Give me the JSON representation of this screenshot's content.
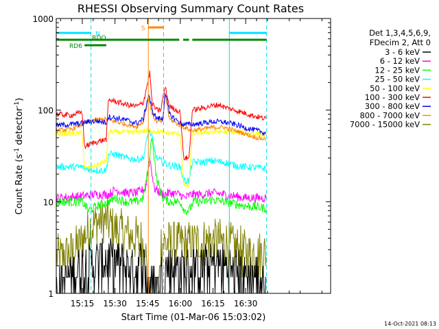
{
  "chart_data": {
    "type": "line",
    "title": "RHESSI Observing Summary Count Rates",
    "xlabel": "Start Time (01-Mar-06 15:03:02)",
    "ylabel_main": "Count Rate (s",
    "ylabel_sup1": "-1",
    "ylabel_mid": " detector",
    "ylabel_sup2": "-1",
    "ylabel_end": ")",
    "y_scale": "log",
    "ylim": [
      1,
      1000
    ],
    "xlim": [
      3.0333,
      129.0
    ],
    "x_unit": "minutes after 15:00",
    "x_ticks": [
      {
        "v": 15,
        "label": "15:15"
      },
      {
        "v": 30,
        "label": "15:30"
      },
      {
        "v": 45,
        "label": "15:45"
      },
      {
        "v": 60,
        "label": "16:00"
      },
      {
        "v": 75,
        "label": "16:15"
      },
      {
        "v": 90,
        "label": "16:30"
      }
    ],
    "y_ticks": [
      {
        "v": 1,
        "label": "1"
      },
      {
        "v": 10,
        "label": "10"
      },
      {
        "v": 100,
        "label": "100"
      },
      {
        "v": 1000,
        "label": "1000"
      }
    ],
    "legend_header": [
      "Det 1,3,4,5,6,9,",
      "FDecim 2, Att 0"
    ],
    "legend_position": "right, outside plot",
    "timestamp": "14-Oct-2021 08:13",
    "vlines": [
      {
        "x": 19.0,
        "color": "#00e0e0",
        "style": "dashed"
      },
      {
        "x": 45.3,
        "color": "#ff8800",
        "style": "solid"
      },
      {
        "x": 52.3,
        "color": "#ff8800",
        "style": "dashed"
      },
      {
        "x": 82.5,
        "color": "#00e0e0",
        "style": "solid"
      },
      {
        "x": 99.6,
        "color": "#00e0e0",
        "style": "dashed"
      }
    ],
    "flag_bars": [
      {
        "name": "N",
        "label_x": 21.0,
        "color": "#00e0ff",
        "segments": [
          [
            3.2,
            19.0
          ],
          [
            82.5,
            99.6
          ]
        ],
        "level": 0
      },
      {
        "name": "S",
        "label_x": 42.0,
        "color": "#ff8800",
        "segments": [
          [
            45.3,
            52.3
          ]
        ],
        "level": 1
      },
      {
        "name": "RDO",
        "label_x": 19.5,
        "color": "#008800",
        "segments": [
          [
            3.2,
            59.5
          ],
          [
            61.3,
            64.0
          ],
          [
            65.5,
            99.6
          ]
        ],
        "level": 2
      },
      {
        "name": "RD6",
        "label_x": 9.0,
        "color": "#008800",
        "segments": [
          [
            16.0,
            26.0
          ]
        ],
        "level": 3
      }
    ],
    "series": [
      {
        "name": "3 - 6 keV",
        "color": "#000000",
        "noise": 0.6,
        "floor": true,
        "points": [
          [
            3.2,
            1
          ],
          [
            10,
            1.4
          ],
          [
            14,
            1.6
          ],
          [
            18,
            1.7
          ],
          [
            22,
            1.9
          ],
          [
            26,
            2.0
          ],
          [
            30,
            1.9
          ],
          [
            35,
            1.7
          ],
          [
            40,
            1.6
          ],
          [
            43,
            2.0
          ],
          [
            45,
            1
          ],
          [
            50,
            1
          ],
          [
            52,
            1.4
          ],
          [
            55,
            1.7
          ],
          [
            60,
            1.6
          ],
          [
            65,
            1.6
          ],
          [
            70,
            1.7
          ],
          [
            75,
            1.8
          ],
          [
            80,
            1.7
          ],
          [
            85,
            1.5
          ],
          [
            90,
            1.4
          ],
          [
            95,
            1.3
          ],
          [
            99.5,
            1
          ]
        ]
      },
      {
        "name": "6 - 12 keV",
        "color": "#ff00ff",
        "noise": 0.05,
        "points": [
          [
            3.2,
            11
          ],
          [
            15,
            11.5
          ],
          [
            20,
            12
          ],
          [
            27,
            12
          ],
          [
            30,
            13.5
          ],
          [
            35,
            12.5
          ],
          [
            40,
            12.5
          ],
          [
            44,
            14
          ],
          [
            46,
            30
          ],
          [
            48,
            14
          ],
          [
            52,
            12
          ],
          [
            55,
            12.5
          ],
          [
            60,
            12
          ],
          [
            62,
            11
          ],
          [
            65,
            12
          ],
          [
            70,
            12
          ],
          [
            75,
            12.5
          ],
          [
            80,
            12
          ],
          [
            85,
            11.5
          ],
          [
            90,
            11
          ],
          [
            99.5,
            11
          ]
        ]
      },
      {
        "name": "12 - 25 keV",
        "color": "#00ff00",
        "noise": 0.05,
        "points": [
          [
            3.2,
            10
          ],
          [
            15,
            10
          ],
          [
            18,
            8
          ],
          [
            22,
            9
          ],
          [
            27,
            10
          ],
          [
            30,
            11
          ],
          [
            35,
            10
          ],
          [
            40,
            10
          ],
          [
            43,
            11
          ],
          [
            45.5,
            25
          ],
          [
            47,
            55
          ],
          [
            49,
            18
          ],
          [
            52,
            11
          ],
          [
            55,
            10
          ],
          [
            60,
            10
          ],
          [
            62,
            8
          ],
          [
            64,
            8
          ],
          [
            66,
            10
          ],
          [
            70,
            10
          ],
          [
            75,
            10.5
          ],
          [
            80,
            10
          ],
          [
            85,
            9.5
          ],
          [
            90,
            9
          ],
          [
            99.5,
            8.5
          ]
        ]
      },
      {
        "name": "25 - 50 keV",
        "color": "#00ffff",
        "noise": 0.04,
        "points": [
          [
            3.2,
            24
          ],
          [
            14,
            24
          ],
          [
            15,
            24
          ],
          [
            16,
            23
          ],
          [
            22,
            22
          ],
          [
            26,
            22
          ],
          [
            27,
            33
          ],
          [
            30,
            33
          ],
          [
            35,
            30
          ],
          [
            40,
            29
          ],
          [
            43,
            30
          ],
          [
            45.5,
            60
          ],
          [
            47,
            50
          ],
          [
            49,
            30
          ],
          [
            52,
            27
          ],
          [
            55,
            25
          ],
          [
            60,
            24
          ],
          [
            61.5,
            17
          ],
          [
            64,
            17
          ],
          [
            65.5,
            27
          ],
          [
            70,
            27
          ],
          [
            75,
            28
          ],
          [
            80,
            27
          ],
          [
            85,
            25
          ],
          [
            90,
            24
          ],
          [
            99.5,
            23
          ]
        ]
      },
      {
        "name": "50 - 100 keV",
        "color": "#ffff00",
        "noise": 0.03,
        "points": [
          [
            3.2,
            55
          ],
          [
            14,
            56
          ],
          [
            15,
            56
          ],
          [
            16,
            23
          ],
          [
            20,
            24
          ],
          [
            26,
            28
          ],
          [
            27,
            58
          ],
          [
            30,
            58
          ],
          [
            35,
            57
          ],
          [
            40,
            58
          ],
          [
            45,
            60
          ],
          [
            47,
            60
          ],
          [
            52,
            57
          ],
          [
            55,
            56
          ],
          [
            60,
            55
          ],
          [
            61.5,
            15
          ],
          [
            64,
            15
          ],
          [
            65.5,
            56
          ],
          [
            70,
            57
          ],
          [
            75,
            58
          ],
          [
            80,
            58
          ],
          [
            85,
            57
          ],
          [
            90,
            56
          ],
          [
            99.5,
            54
          ]
        ]
      },
      {
        "name": "100 - 300 keV",
        "color": "#ff0000",
        "noise": 0.03,
        "points": [
          [
            3.2,
            90
          ],
          [
            10,
            88
          ],
          [
            15,
            95
          ],
          [
            16,
            40
          ],
          [
            20,
            44
          ],
          [
            26,
            48
          ],
          [
            27,
            130
          ],
          [
            30,
            125
          ],
          [
            35,
            115
          ],
          [
            40,
            110
          ],
          [
            43,
            120
          ],
          [
            45,
            200
          ],
          [
            46,
            260
          ],
          [
            47,
            120
          ],
          [
            49,
            100
          ],
          [
            51,
            100
          ],
          [
            53,
            180
          ],
          [
            55,
            110
          ],
          [
            60,
            95
          ],
          [
            61.5,
            30
          ],
          [
            64,
            30
          ],
          [
            65.5,
            100
          ],
          [
            70,
            105
          ],
          [
            75,
            112
          ],
          [
            78,
            115
          ],
          [
            80,
            108
          ],
          [
            85,
            100
          ],
          [
            90,
            92
          ],
          [
            95,
            85
          ],
          [
            99.5,
            80
          ]
        ]
      },
      {
        "name": "300 - 800 keV",
        "color": "#0000ff",
        "noise": 0.03,
        "points": [
          [
            3.2,
            68
          ],
          [
            10,
            70
          ],
          [
            15,
            72
          ],
          [
            18,
            75
          ],
          [
            22,
            76
          ],
          [
            26,
            73
          ],
          [
            27,
            85
          ],
          [
            30,
            82
          ],
          [
            35,
            78
          ],
          [
            40,
            72
          ],
          [
            43,
            80
          ],
          [
            45.5,
            150
          ],
          [
            47,
            100
          ],
          [
            49,
            82
          ],
          [
            52,
            80
          ],
          [
            53,
            160
          ],
          [
            55,
            90
          ],
          [
            60,
            72
          ],
          [
            61.5,
            70
          ],
          [
            64,
            70
          ],
          [
            65.5,
            70
          ],
          [
            70,
            72
          ],
          [
            75,
            75
          ],
          [
            80,
            74
          ],
          [
            85,
            70
          ],
          [
            90,
            64
          ],
          [
            95,
            60
          ],
          [
            99.5,
            56
          ]
        ]
      },
      {
        "name": "800 - 7000 keV",
        "color": "#ff8800",
        "noise": 0.025,
        "points": [
          [
            3.2,
            60
          ],
          [
            10,
            62
          ],
          [
            15,
            70
          ],
          [
            20,
            78
          ],
          [
            25,
            80
          ],
          [
            27,
            78
          ],
          [
            30,
            75
          ],
          [
            35,
            70
          ],
          [
            40,
            66
          ],
          [
            43,
            75
          ],
          [
            45.5,
            140
          ],
          [
            47,
            90
          ],
          [
            49,
            75
          ],
          [
            52,
            75
          ],
          [
            53,
            150
          ],
          [
            55,
            80
          ],
          [
            60,
            68
          ],
          [
            65,
            60
          ],
          [
            70,
            62
          ],
          [
            75,
            65
          ],
          [
            80,
            65
          ],
          [
            85,
            60
          ],
          [
            90,
            55
          ],
          [
            95,
            50
          ],
          [
            99.5,
            48
          ]
        ]
      },
      {
        "name": "7000 - 15000 keV",
        "color": "#808000",
        "noise": 0.25,
        "points": [
          [
            3.2,
            2.4
          ],
          [
            10,
            2.8
          ],
          [
            14,
            3.5
          ],
          [
            18,
            5
          ],
          [
            22,
            6
          ],
          [
            26,
            6.2
          ],
          [
            30,
            5
          ],
          [
            35,
            4.5
          ],
          [
            40,
            4
          ],
          [
            44,
            3.5
          ],
          [
            45,
            1
          ],
          [
            50,
            1
          ],
          [
            51,
            3.5
          ],
          [
            55,
            3.5
          ],
          [
            60,
            3.5
          ],
          [
            65,
            3.5
          ],
          [
            70,
            3.7
          ],
          [
            75,
            3.8
          ],
          [
            80,
            3.6
          ],
          [
            85,
            3.2
          ],
          [
            90,
            2.8
          ],
          [
            95,
            2.7
          ],
          [
            99.5,
            2.6
          ]
        ]
      }
    ]
  }
}
